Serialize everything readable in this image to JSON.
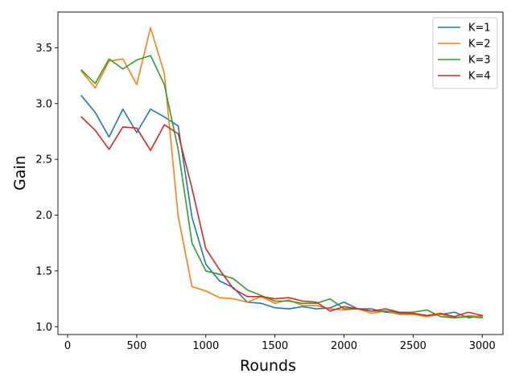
{
  "chart_data": {
    "type": "line",
    "title": "",
    "xlabel": "Rounds",
    "ylabel": "Gain",
    "xlim": [
      -70,
      3150
    ],
    "ylim": [
      0.93,
      3.82
    ],
    "xticks": [
      0,
      500,
      1000,
      1500,
      2000,
      2500,
      3000
    ],
    "xtick_labels": [
      "0",
      "500",
      "1000",
      "1500",
      "2000",
      "2500",
      "3000"
    ],
    "yticks": [
      1.0,
      1.5,
      2.0,
      2.5,
      3.0,
      3.5
    ],
    "ytick_labels": [
      "1.0",
      "1.5",
      "2.0",
      "2.5",
      "3.0",
      "3.5"
    ],
    "grid": false,
    "legend_position": "top-right",
    "x": [
      100,
      200,
      300,
      400,
      500,
      600,
      700,
      800,
      900,
      1000,
      1100,
      1200,
      1300,
      1400,
      1500,
      1600,
      1700,
      1800,
      1900,
      2000,
      2100,
      2200,
      2300,
      2400,
      2500,
      2600,
      2700,
      2800,
      2900,
      3000
    ],
    "series": [
      {
        "name": "K=1",
        "color": "#1f77b4",
        "values": [
          3.07,
          2.92,
          2.7,
          2.95,
          2.74,
          2.95,
          2.88,
          2.8,
          1.98,
          1.56,
          1.41,
          1.35,
          1.22,
          1.21,
          1.17,
          1.16,
          1.18,
          1.16,
          1.17,
          1.22,
          1.16,
          1.16,
          1.13,
          1.12,
          1.12,
          1.1,
          1.11,
          1.13,
          1.08,
          1.1
        ]
      },
      {
        "name": "K=2",
        "color": "#ff7f0e",
        "values": [
          3.29,
          3.14,
          3.38,
          3.4,
          3.17,
          3.68,
          3.27,
          1.99,
          1.36,
          1.32,
          1.26,
          1.25,
          1.22,
          1.27,
          1.21,
          1.24,
          1.19,
          1.19,
          1.16,
          1.15,
          1.16,
          1.12,
          1.14,
          1.11,
          1.11,
          1.09,
          1.11,
          1.08,
          1.1,
          1.09
        ]
      },
      {
        "name": "K=3",
        "color": "#2ca02c",
        "values": [
          3.3,
          3.18,
          3.4,
          3.31,
          3.39,
          3.43,
          3.17,
          2.59,
          1.75,
          1.5,
          1.47,
          1.43,
          1.33,
          1.28,
          1.23,
          1.23,
          1.21,
          1.21,
          1.25,
          1.16,
          1.16,
          1.14,
          1.14,
          1.13,
          1.13,
          1.15,
          1.09,
          1.08,
          1.09,
          1.08
        ]
      },
      {
        "name": "K=4",
        "color": "#d62728",
        "values": [
          2.88,
          2.76,
          2.59,
          2.79,
          2.78,
          2.58,
          2.81,
          2.73,
          2.24,
          1.7,
          1.51,
          1.34,
          1.27,
          1.27,
          1.25,
          1.26,
          1.23,
          1.22,
          1.14,
          1.18,
          1.16,
          1.14,
          1.16,
          1.13,
          1.12,
          1.1,
          1.12,
          1.09,
          1.13,
          1.1
        ]
      }
    ]
  }
}
